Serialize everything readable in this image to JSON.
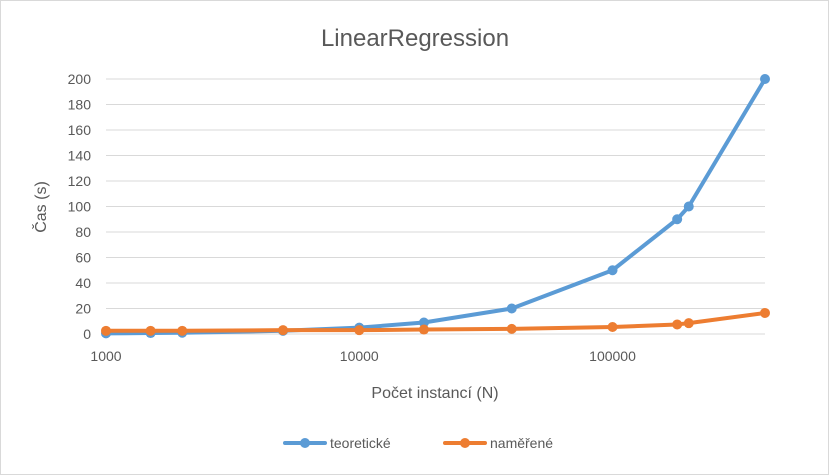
{
  "chart_data": {
    "type": "line",
    "title": "LinearRegression",
    "xlabel": "Počet instancí (N)",
    "ylabel": "Čas (s)",
    "x_scale": "log",
    "xlim": [
      1000,
      400000
    ],
    "ylim": [
      0,
      200
    ],
    "x_ticks": [
      1000,
      10000,
      100000
    ],
    "x_tick_labels": [
      "1000",
      "10000",
      "100000"
    ],
    "y_ticks": [
      0,
      20,
      40,
      60,
      80,
      100,
      120,
      140,
      160,
      180,
      200
    ],
    "y_tick_labels": [
      "0",
      "20",
      "40",
      "60",
      "80",
      "100",
      "120",
      "140",
      "160",
      "180",
      "200"
    ],
    "grid": "horizontal",
    "legend_position": "bottom",
    "series": [
      {
        "name": "teoretické",
        "color": "#5b9bd5",
        "x": [
          1000,
          1500,
          2000,
          5000,
          10000,
          18000,
          40000,
          100000,
          180000,
          200000,
          400000
        ],
        "y": [
          0.5,
          0.75,
          1,
          2.5,
          5,
          9,
          20,
          50,
          90,
          100,
          200
        ]
      },
      {
        "name": "naměřené",
        "color": "#ed7d31",
        "x": [
          1000,
          1500,
          2000,
          5000,
          10000,
          18000,
          40000,
          100000,
          180000,
          200000,
          400000
        ],
        "y": [
          2.5,
          2.5,
          2.5,
          3,
          3,
          3.5,
          4,
          5.5,
          7.5,
          8.5,
          16.5
        ]
      }
    ]
  }
}
